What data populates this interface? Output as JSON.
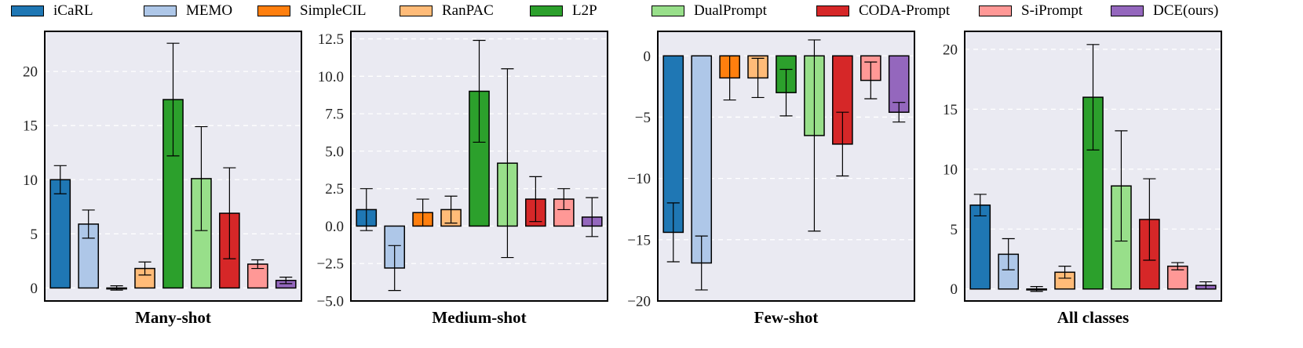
{
  "legend": {
    "items": [
      {
        "label": "iCaRL",
        "color": "#1f77b4"
      },
      {
        "label": "MEMO",
        "color": "#aec7e8"
      },
      {
        "label": "SimpleCIL",
        "color": "#ff7f0e"
      },
      {
        "label": "RanPAC",
        "color": "#ffbb78"
      },
      {
        "label": "L2P",
        "color": "#2ca02c"
      },
      {
        "label": "DualPrompt",
        "color": "#98df8a"
      },
      {
        "label": "CODA-Prompt",
        "color": "#d62728"
      },
      {
        "label": "S-iPrompt",
        "color": "#ff9896"
      },
      {
        "label": "DCE(ours)",
        "color": "#9467bd"
      }
    ]
  },
  "chart_data": [
    {
      "type": "bar",
      "title": "Many-shot",
      "categories": [
        "iCaRL",
        "MEMO",
        "SimpleCIL",
        "RanPAC",
        "L2P",
        "DualPrompt",
        "CODA-Prompt",
        "S-iPrompt",
        "DCE(ours)"
      ],
      "values": [
        10.0,
        5.9,
        0.0,
        1.8,
        17.4,
        10.1,
        6.9,
        2.2,
        0.7
      ],
      "errors": [
        1.3,
        1.3,
        0.2,
        0.6,
        5.2,
        4.8,
        4.2,
        0.4,
        0.3
      ],
      "ylim": [
        -1.2,
        23.7
      ],
      "yticks": [
        0,
        5,
        10,
        15,
        20
      ],
      "ytick_labels": [
        "0",
        "5",
        "10",
        "15",
        "20"
      ]
    },
    {
      "type": "bar",
      "title": "Medium-shot",
      "categories": [
        "iCaRL",
        "MEMO",
        "SimpleCIL",
        "RanPAC",
        "L2P",
        "DualPrompt",
        "CODA-Prompt",
        "S-iPrompt",
        "DCE(ours)"
      ],
      "values": [
        1.1,
        -2.8,
        0.9,
        1.1,
        9.0,
        4.2,
        1.8,
        1.8,
        0.6
      ],
      "errors": [
        1.4,
        1.5,
        0.9,
        0.9,
        3.4,
        6.3,
        1.5,
        0.7,
        1.3
      ],
      "ylim": [
        -5.0,
        13.0
      ],
      "yticks": [
        -5.0,
        -2.5,
        0.0,
        2.5,
        5.0,
        7.5,
        10.0,
        12.5
      ],
      "ytick_labels": [
        "−5.0",
        "−2.5",
        "0.0",
        "2.5",
        "5.0",
        "7.5",
        "10.0",
        "12.5"
      ]
    },
    {
      "type": "bar",
      "title": "Few-shot",
      "categories": [
        "iCaRL",
        "MEMO",
        "SimpleCIL",
        "RanPAC",
        "L2P",
        "DualPrompt",
        "CODA-Prompt",
        "S-iPrompt",
        "DCE(ours)"
      ],
      "values": [
        -14.4,
        -16.9,
        -1.8,
        -1.8,
        -3.0,
        -6.5,
        -7.2,
        -2.0,
        -4.6
      ],
      "errors": [
        2.4,
        2.2,
        1.8,
        1.6,
        1.9,
        7.8,
        2.6,
        1.5,
        0.8
      ],
      "ylim": [
        -20.0,
        2.0
      ],
      "yticks": [
        -20,
        -15,
        -10,
        -5,
        0
      ],
      "ytick_labels": [
        "−20",
        "−15",
        "−10",
        "−5",
        "0"
      ]
    },
    {
      "type": "bar",
      "title": "All classes",
      "categories": [
        "iCaRL",
        "MEMO",
        "SimpleCIL",
        "RanPAC",
        "L2P",
        "DualPrompt",
        "CODA-Prompt",
        "S-iPrompt",
        "DCE(ours)"
      ],
      "values": [
        7.0,
        2.9,
        0.0,
        1.4,
        16.0,
        8.6,
        5.8,
        1.9,
        0.3
      ],
      "errors": [
        0.9,
        1.3,
        0.2,
        0.5,
        4.4,
        4.6,
        3.4,
        0.3,
        0.3
      ],
      "ylim": [
        -1.0,
        21.5
      ],
      "yticks": [
        0,
        5,
        10,
        15,
        20
      ],
      "ytick_labels": [
        "0",
        "5",
        "10",
        "15",
        "20"
      ]
    }
  ]
}
